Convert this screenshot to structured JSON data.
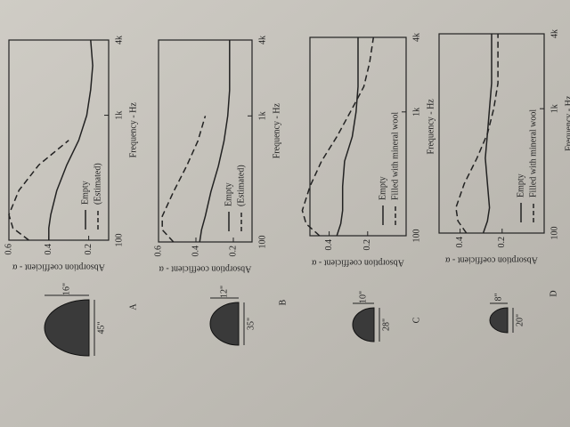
{
  "chart_data": [
    {
      "type": "line",
      "label": "A",
      "dimensions": [
        "16\"",
        "45\""
      ],
      "x_label": "Frequency - Hz",
      "y_label": "Absorption coefficient - α",
      "x": [
        100,
        125,
        160,
        250,
        400,
        630,
        1000,
        1600,
        2500,
        4000
      ],
      "xlim": [
        100,
        4000
      ],
      "log_x": true,
      "xticks": [
        {
          "value": 100,
          "label": "100"
        },
        {
          "value": 1000,
          "label": "1k"
        },
        {
          "value": 4000,
          "label": "4k"
        }
      ],
      "ylim": [
        0.1,
        0.6
      ],
      "yticks": [
        0.2,
        0.4,
        0.6
      ],
      "series": [
        {
          "name": "Empty",
          "color": "#222222",
          "style": "solid",
          "values": [
            0.4,
            0.4,
            0.39,
            0.36,
            0.31,
            0.25,
            0.21,
            0.19,
            0.18,
            0.19
          ]
        },
        {
          "name": "(Estimated)",
          "color": "#222222",
          "style": "dashed",
          "values": [
            0.5,
            0.58,
            0.6,
            0.55,
            0.45,
            0.3,
            null,
            null,
            null,
            null
          ]
        }
      ]
    },
    {
      "type": "line",
      "label": "B",
      "dimensions": [
        "12\"",
        "35\""
      ],
      "x_label": "Frequency - Hz",
      "y_label": "Absorption coefficient - α",
      "x": [
        100,
        125,
        160,
        250,
        400,
        630,
        1000,
        1600,
        2500,
        4000
      ],
      "xlim": [
        100,
        4000
      ],
      "log_x": true,
      "xticks": [
        {
          "value": 100,
          "label": "100"
        },
        {
          "value": 1000,
          "label": "1k"
        },
        {
          "value": 4000,
          "label": "4k"
        }
      ],
      "ylim": [
        0.1,
        0.6
      ],
      "yticks": [
        0.2,
        0.4,
        0.6
      ],
      "series": [
        {
          "name": "Empty",
          "color": "#222222",
          "style": "solid",
          "values": [
            0.38,
            0.37,
            0.35,
            0.32,
            0.28,
            0.25,
            0.23,
            0.22,
            0.22,
            0.22
          ]
        },
        {
          "name": "(Estimated)",
          "color": "#222222",
          "style": "dashed",
          "values": [
            0.52,
            0.58,
            0.58,
            0.52,
            0.45,
            0.39,
            0.35,
            null,
            null,
            null
          ]
        }
      ]
    },
    {
      "type": "line",
      "label": "C",
      "dimensions": [
        "10\"",
        "28\""
      ],
      "x_label": "Frequency - Hz",
      "y_label": "Absorption coefficient - α",
      "x": [
        100,
        125,
        160,
        250,
        400,
        630,
        1000,
        1600,
        2500,
        4000
      ],
      "xlim": [
        100,
        4000
      ],
      "log_x": true,
      "xticks": [
        {
          "value": 100,
          "label": "100"
        },
        {
          "value": 1000,
          "label": "1k"
        },
        {
          "value": 4000,
          "label": "4k"
        }
      ],
      "ylim": [
        0,
        0.5
      ],
      "yticks": [
        0.2,
        0.4
      ],
      "series": [
        {
          "name": "Empty",
          "color": "#222222",
          "style": "solid",
          "values": [
            0.36,
            0.34,
            0.33,
            0.33,
            0.32,
            0.28,
            0.26,
            0.25,
            0.25,
            0.25
          ]
        },
        {
          "name": "Filled with mineral wool",
          "color": "#222222",
          "style": "dashed",
          "values": [
            0.45,
            0.52,
            0.54,
            0.5,
            0.44,
            0.36,
            0.29,
            0.22,
            0.19,
            0.17
          ]
        }
      ]
    },
    {
      "type": "line",
      "label": "D",
      "dimensions": [
        "8\"",
        "20\""
      ],
      "x_label": "Frequency - Hz",
      "y_label": "Absorption coefficient - α",
      "x": [
        100,
        125,
        160,
        250,
        400,
        630,
        1000,
        1600,
        2500,
        4000
      ],
      "xlim": [
        100,
        4000
      ],
      "log_x": true,
      "xticks": [
        {
          "value": 100,
          "label": "100"
        },
        {
          "value": 1000,
          "label": "1k"
        },
        {
          "value": 4000,
          "label": "4k"
        }
      ],
      "ylim": [
        0,
        0.5
      ],
      "yticks": [
        0.2,
        0.4
      ],
      "series": [
        {
          "name": "Empty",
          "color": "#222222",
          "style": "solid",
          "values": [
            0.29,
            0.27,
            0.26,
            0.27,
            0.28,
            0.27,
            0.26,
            0.25,
            0.25,
            0.25
          ]
        },
        {
          "name": "Filled with mineral wool",
          "color": "#222222",
          "style": "dashed",
          "values": [
            0.37,
            0.41,
            0.42,
            0.38,
            0.32,
            0.27,
            0.24,
            0.22,
            0.22,
            0.22
          ]
        }
      ]
    }
  ]
}
